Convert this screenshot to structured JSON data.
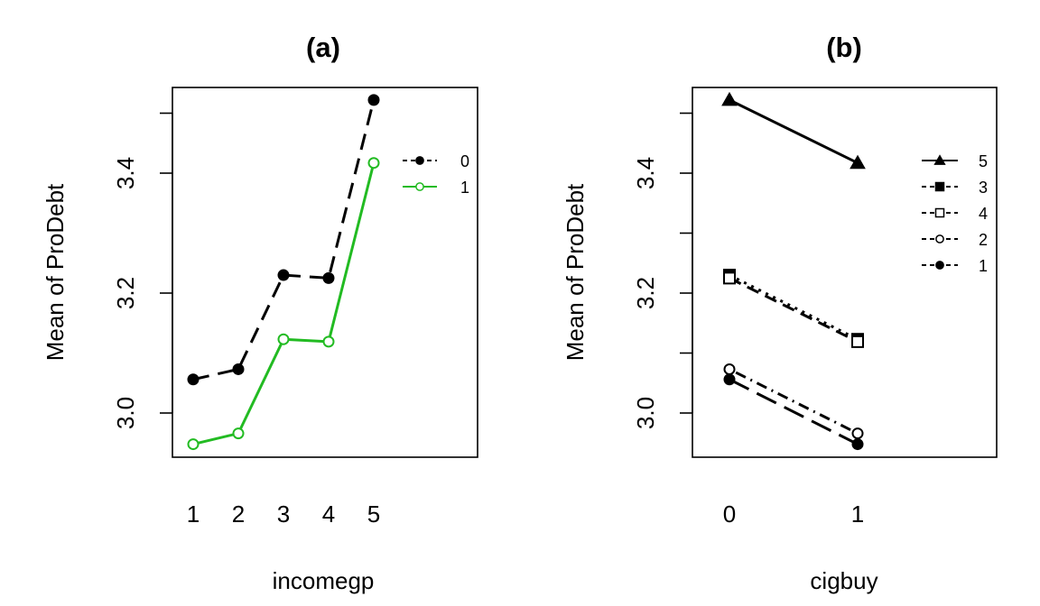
{
  "chart_data": [
    {
      "type": "line",
      "title": "(a)",
      "xlabel": "incomegp",
      "ylabel": "Mean of ProDebt",
      "categories": [
        "1",
        "2",
        "3",
        "4",
        "5"
      ],
      "ylim": [
        2.9,
        3.55
      ],
      "yticks": [
        "3.0",
        "3.2",
        "3.4"
      ],
      "ytick_values": [
        3.0,
        3.2,
        3.4,
        3.5
      ],
      "grid": false,
      "legend_position": "top-right",
      "series": [
        {
          "name": "0",
          "values": [
            3.056,
            3.073,
            3.23,
            3.225,
            3.522
          ],
          "color": "#000000",
          "dash": "18 10",
          "marker": "filled-circle"
        },
        {
          "name": "1",
          "values": [
            2.948,
            2.966,
            3.123,
            3.119,
            3.417
          ],
          "color": "#22bb22",
          "dash": "none",
          "marker": "open-circle"
        }
      ]
    },
    {
      "type": "line",
      "title": "(b)",
      "xlabel": "cigbuy",
      "ylabel": "Mean of ProDebt",
      "categories": [
        "0",
        "1"
      ],
      "ylim": [
        2.9,
        3.55
      ],
      "yticks": [
        "3.0",
        "3.2",
        "3.4"
      ],
      "ytick_values": [
        3.0,
        3.1,
        3.2,
        3.3,
        3.4,
        3.5
      ],
      "grid": false,
      "legend_position": "top-right",
      "series": [
        {
          "name": "5",
          "values": [
            3.522,
            3.417
          ],
          "color": "#000000",
          "dash": "none",
          "marker": "filled-triangle"
        },
        {
          "name": "3",
          "values": [
            3.23,
            3.123
          ],
          "color": "#000000",
          "dash": "3 6",
          "marker": "filled-square"
        },
        {
          "name": "4",
          "values": [
            3.225,
            3.119
          ],
          "color": "#000000",
          "dash": "14 8",
          "marker": "open-square"
        },
        {
          "name": "2",
          "values": [
            3.073,
            2.966
          ],
          "color": "#000000",
          "dash": "2 6 12 6",
          "marker": "open-circle"
        },
        {
          "name": "1",
          "values": [
            3.056,
            2.948
          ],
          "color": "#000000",
          "dash": "24 10",
          "marker": "filled-circle"
        }
      ]
    }
  ]
}
